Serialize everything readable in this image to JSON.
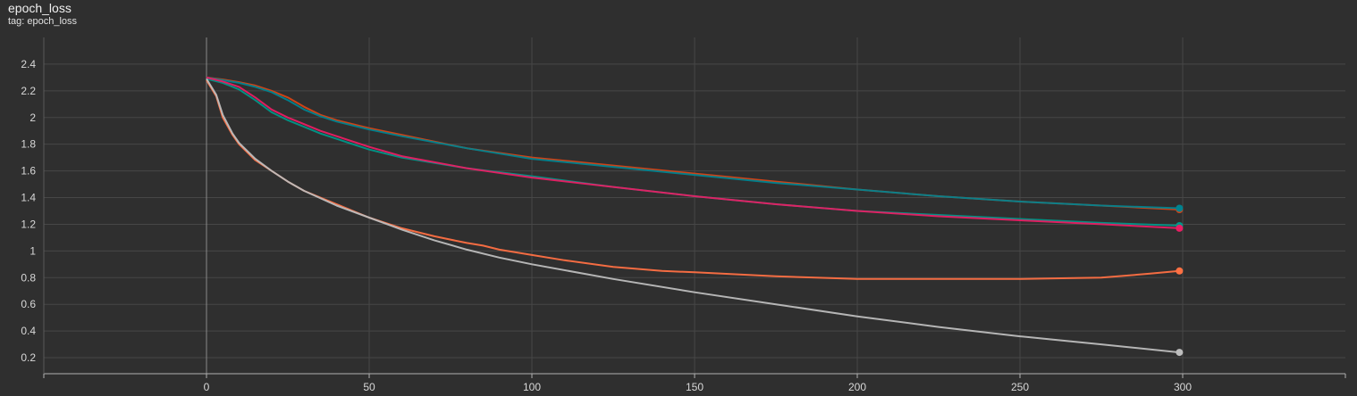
{
  "header": {
    "title": "epoch_loss",
    "subtitle": "tag: epoch_loss"
  },
  "chart_data": {
    "type": "line",
    "title": "epoch_loss",
    "subtitle": "tag: epoch_loss",
    "xlabel": "",
    "ylabel": "",
    "xlim": [
      -50,
      350
    ],
    "ylim": [
      0.08,
      2.6
    ],
    "x_ticks": [
      0,
      50,
      100,
      150,
      200,
      250,
      300
    ],
    "y_ticks": [
      0.2,
      0.4,
      0.6,
      0.8,
      1,
      1.2,
      1.4,
      1.6,
      1.8,
      2,
      2.2,
      2.4
    ],
    "grid": true,
    "legend": "none",
    "series": [
      {
        "color": "#d84315",
        "x": [
          0,
          5,
          10,
          15,
          20,
          25,
          30,
          35,
          40,
          50,
          60,
          80,
          100,
          125,
          150,
          175,
          200,
          225,
          250,
          275,
          299
        ],
        "y": [
          2.3,
          2.285,
          2.265,
          2.24,
          2.2,
          2.15,
          2.08,
          2.02,
          1.98,
          1.92,
          1.87,
          1.77,
          1.7,
          1.64,
          1.58,
          1.52,
          1.46,
          1.41,
          1.37,
          1.34,
          1.31
        ]
      },
      {
        "color": "#00838f",
        "x": [
          0,
          5,
          10,
          15,
          20,
          25,
          30,
          35,
          40,
          50,
          60,
          80,
          100,
          125,
          150,
          175,
          200,
          225,
          250,
          275,
          299
        ],
        "y": [
          2.3,
          2.28,
          2.26,
          2.23,
          2.19,
          2.13,
          2.06,
          2.01,
          1.97,
          1.91,
          1.86,
          1.77,
          1.69,
          1.63,
          1.57,
          1.51,
          1.46,
          1.41,
          1.37,
          1.34,
          1.32
        ]
      },
      {
        "color": "#009688",
        "x": [
          0,
          5,
          10,
          15,
          20,
          25,
          30,
          35,
          40,
          50,
          60,
          80,
          100,
          125,
          150,
          175,
          200,
          225,
          250,
          275,
          299
        ],
        "y": [
          2.29,
          2.26,
          2.21,
          2.13,
          2.04,
          1.98,
          1.93,
          1.88,
          1.84,
          1.76,
          1.7,
          1.62,
          1.56,
          1.48,
          1.41,
          1.35,
          1.3,
          1.27,
          1.24,
          1.21,
          1.19
        ]
      },
      {
        "color": "#e91e63",
        "x": [
          0,
          5,
          10,
          15,
          20,
          25,
          30,
          35,
          40,
          50,
          60,
          80,
          100,
          125,
          150,
          175,
          200,
          225,
          250,
          275,
          299
        ],
        "y": [
          2.3,
          2.27,
          2.23,
          2.15,
          2.06,
          2.0,
          1.95,
          1.9,
          1.86,
          1.78,
          1.71,
          1.62,
          1.55,
          1.48,
          1.41,
          1.35,
          1.3,
          1.26,
          1.23,
          1.2,
          1.17
        ]
      },
      {
        "color": "#ff7043",
        "x": [
          0,
          3,
          5,
          8,
          10,
          15,
          20,
          25,
          30,
          40,
          50,
          60,
          70,
          80,
          85,
          90,
          100,
          110,
          125,
          140,
          150,
          175,
          200,
          210,
          225,
          250,
          275,
          290,
          299
        ],
        "y": [
          2.28,
          2.16,
          2.0,
          1.87,
          1.8,
          1.68,
          1.6,
          1.52,
          1.45,
          1.35,
          1.25,
          1.17,
          1.11,
          1.06,
          1.04,
          1.01,
          0.97,
          0.93,
          0.88,
          0.85,
          0.84,
          0.81,
          0.79,
          0.79,
          0.79,
          0.79,
          0.8,
          0.83,
          0.85
        ]
      },
      {
        "color": "#bdbdbd",
        "x": [
          0,
          3,
          5,
          8,
          10,
          15,
          20,
          25,
          30,
          40,
          50,
          60,
          70,
          80,
          90,
          100,
          125,
          150,
          175,
          200,
          225,
          250,
          275,
          299
        ],
        "y": [
          2.29,
          2.17,
          2.02,
          1.88,
          1.81,
          1.69,
          1.6,
          1.52,
          1.45,
          1.34,
          1.25,
          1.16,
          1.08,
          1.01,
          0.95,
          0.9,
          0.79,
          0.69,
          0.6,
          0.51,
          0.43,
          0.36,
          0.3,
          0.24
        ]
      }
    ]
  }
}
